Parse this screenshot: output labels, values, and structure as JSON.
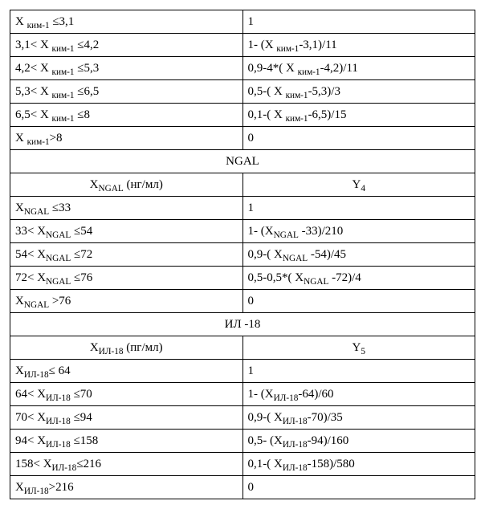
{
  "section1": {
    "rows": [
      {
        "cond": "X <sub>ким-1</sub> ≤3,1",
        "val": "1"
      },
      {
        "cond": "3,1&lt; X <sub>ким-1</sub> ≤4,2",
        "val": "1- (X <sub>ким-1</sub>-3,1)/11"
      },
      {
        "cond": "4,2&lt; X <sub>ким-1</sub> ≤5,3",
        "val": "0,9-4*( X <sub>ким-1</sub>-4,2)/11"
      },
      {
        "cond": "5,3&lt; X <sub>ким-1</sub> ≤6,5",
        "val": "0,5-( X <sub>ким-1</sub>-5,3)/3"
      },
      {
        "cond": "6,5&lt; X <sub>ким-1</sub> ≤8",
        "val": "0,1-( X <sub>ким-1</sub>-6,5)/15"
      },
      {
        "cond": "X <sub>ким-1</sub>&gt;8",
        "val": "0"
      }
    ]
  },
  "section2": {
    "title": "NGAL",
    "col_left": "X<sub>NGAL</sub> (нг/мл)",
    "col_right": "Y<sub>4</sub>",
    "rows": [
      {
        "cond": "X<sub>NGAL</sub> ≤33",
        "val": "1"
      },
      {
        "cond": "33&lt; X<sub>NGAL</sub> ≤54",
        "val": "1- (X<sub>NGAL</sub> -33)/210"
      },
      {
        "cond": "54&lt; X<sub>NGAL</sub> ≤72",
        "val": "0,9-( X<sub>NGAL</sub> -54)/45"
      },
      {
        "cond": "72&lt; X<sub>NGAL</sub> ≤76",
        "val": "0,5-0,5*( X<sub>NGAL</sub> -72)/4"
      },
      {
        "cond": "X<sub>NGAL</sub> &gt;76",
        "val": "0"
      }
    ]
  },
  "section3": {
    "title": "ИЛ -18",
    "col_left": "X<sub>ИЛ-18</sub> (пг/мл)",
    "col_right": "Y<sub>5</sub>",
    "rows": [
      {
        "cond": "X<sub>ИЛ-18</sub>≤ 64",
        "val": "1"
      },
      {
        "cond": "64&lt; X<sub>ИЛ-18</sub> ≤70",
        "val": "1- (X<sub>ИЛ-18</sub>-64)/60"
      },
      {
        "cond": "70&lt; X<sub>ИЛ-18</sub> ≤94",
        "val": "0,9-( X<sub>ИЛ-18</sub>-70)/35"
      },
      {
        "cond": "94&lt; X<sub>ИЛ-18</sub> ≤158",
        "val": "0,5- (X<sub>ИЛ-18</sub>-94)/160"
      },
      {
        "cond": "158&lt; X<sub>ИЛ-18</sub>≤216",
        "val": "0,1-( X<sub>ИЛ-18</sub>-158)/580"
      },
      {
        "cond": "X<sub>ИЛ-18</sub>&gt;216",
        "val": "0"
      }
    ]
  }
}
